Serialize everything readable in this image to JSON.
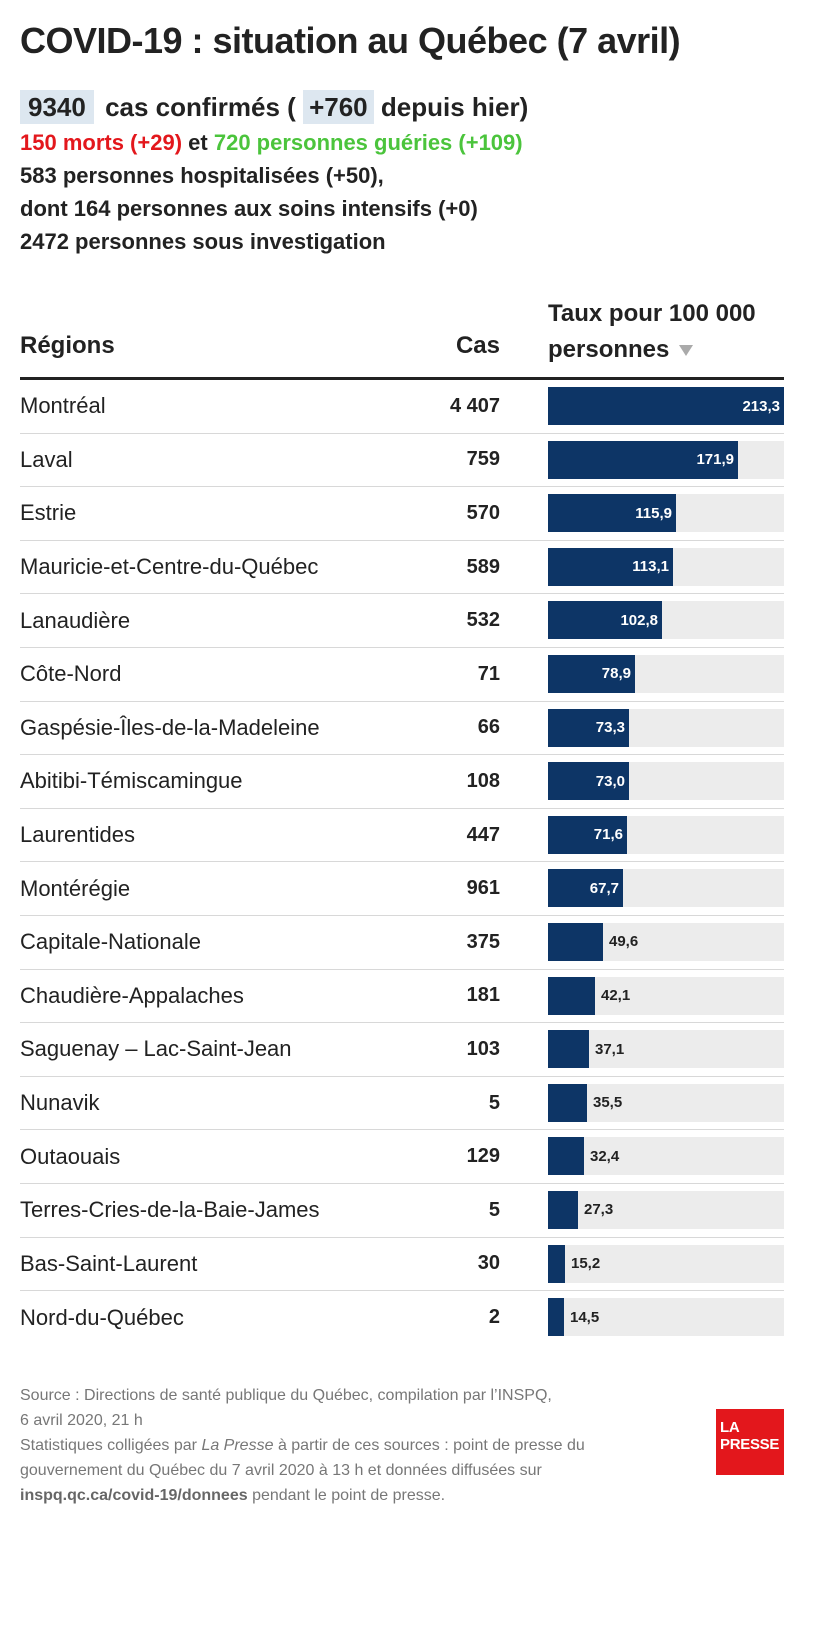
{
  "title": "COVID-19 : situation au Québec (7 avril)",
  "summary": {
    "confirmed": "9340",
    "confirmed_label": "cas confirmés (",
    "confirmed_delta": "+760",
    "confirmed_delta_label": "depuis hier)",
    "deaths": "150 morts (+29)",
    "and": "et",
    "recovered": "720 personnes guéries (+109)",
    "hospitalized": "583 personnes hospitalisées (+50),",
    "intensive": "dont 164 personnes aux soins intensifs (+0)",
    "investigation": "2472 personnes sous investigation"
  },
  "table": {
    "col_region": "Régions",
    "col_cases": "Cas",
    "col_rate": "Taux pour 100 000 personnes"
  },
  "chart_data": {
    "type": "bar",
    "categories": [
      "Montréal",
      "Laval",
      "Estrie",
      "Mauricie-et-Centre-du-Québec",
      "Lanaudière",
      "Côte-Nord",
      "Gaspésie-Îles-de-la-Madeleine",
      "Abitibi-Témiscamingue",
      "Laurentides",
      "Montérégie",
      "Capitale-Nationale",
      "Chaudière-Appalaches",
      "Saguenay – Lac-Saint-Jean",
      "Nunavik",
      "Outaouais",
      "Terres-Cries-de-la-Baie-James",
      "Bas-Saint-Laurent",
      "Nord-du-Québec"
    ],
    "cases": [
      "4 407",
      "759",
      "570",
      "589",
      "532",
      "71",
      "66",
      "108",
      "447",
      "961",
      "375",
      "181",
      "103",
      "5",
      "129",
      "5",
      "30",
      "2"
    ],
    "values": [
      213.3,
      171.9,
      115.9,
      113.1,
      102.8,
      78.9,
      73.3,
      73.0,
      71.6,
      67.7,
      49.6,
      42.1,
      37.1,
      35.5,
      32.4,
      27.3,
      15.2,
      14.5
    ],
    "value_labels": [
      "213,3",
      "171,9",
      "115,9",
      "113,1",
      "102,8",
      "78,9",
      "73,3",
      "73,0",
      "71,6",
      "67,7",
      "49,6",
      "42,1",
      "37,1",
      "35,5",
      "32,4",
      "27,3",
      "15,2",
      "14,5"
    ],
    "xlim": [
      0,
      213.3
    ],
    "title": "COVID-19 : situation au Québec (7 avril)",
    "bar_color": "#0d3566",
    "track_color": "#ececec"
  },
  "footer": {
    "source": "Source : Directions de santé publique du Québec, compilation par l’INSPQ,",
    "source_date": "6 avril 2020, 21 h",
    "stats_prefix": "Statistiques colligées par",
    "stats_publication": "La Presse",
    "stats_middle": "à partir de ces sources : point de presse du gouvernement du Québec du 7 avril 2020 à 13 h et données diffusées sur",
    "stats_url": "inspq.qc.ca/covid-19/donnees",
    "stats_suffix": "pendant le point de presse."
  },
  "logo": {
    "line1": "LA",
    "line2": "PRESSE",
    "color": "#e3171c"
  }
}
